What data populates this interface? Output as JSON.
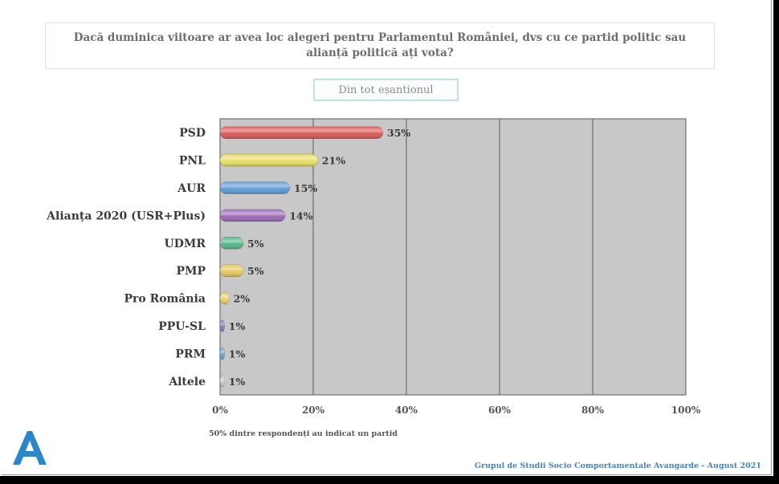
{
  "question": "Dacă duminica viitoare ar avea loc alegeri pentru Parlamentul României, dvs cu ce partid politic sau alianță politică ați vota?",
  "subset": "Din tot eșantionul",
  "note": "50% dintre respondenți au indicat un partid",
  "footer": "Grupul de Studii Socio Comportamentale Avangarde   -  August 2021",
  "chart_data": {
    "type": "bar",
    "orientation": "horizontal",
    "categories": [
      "PSD",
      "PNL",
      "AUR",
      "Alianța 2020 (USR+Plus)",
      "UDMR",
      "PMP",
      "Pro România",
      "PPU-SL",
      "PRM",
      "Altele"
    ],
    "values": [
      35,
      21,
      15,
      14,
      5,
      5,
      2,
      1,
      1,
      1
    ],
    "value_labels": [
      "35%",
      "21%",
      "15%",
      "14%",
      "5%",
      "5%",
      "2%",
      "1%",
      "1%",
      "1%"
    ],
    "colors": [
      "#d9585a",
      "#e6de63",
      "#5e9bd3",
      "#9b69b7",
      "#54b68a",
      "#e3c75d",
      "#e6cf6e",
      "#7c7fbc",
      "#6aa5d4",
      "#c9c9c9"
    ],
    "xlim": [
      0,
      100
    ],
    "xticks": [
      "0%",
      "20%",
      "40%",
      "60%",
      "80%",
      "100%"
    ],
    "grid": true,
    "plot_background": "#c8c8c8"
  }
}
